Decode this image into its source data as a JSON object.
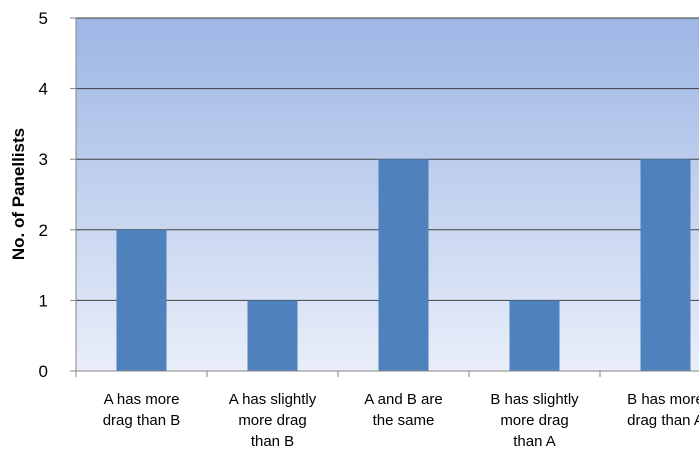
{
  "chart_data": {
    "type": "bar",
    "title": "",
    "xlabel": "",
    "ylabel": "No. of Panellists",
    "ylim": [
      0,
      5
    ],
    "yticks": [
      0,
      1,
      2,
      3,
      4,
      5
    ],
    "grid": true,
    "legend": "none",
    "categories": [
      [
        "A has more",
        "drag than B"
      ],
      [
        "A has slightly",
        "more drag",
        "than B"
      ],
      [
        "A and B are",
        "the same"
      ],
      [
        "B has slightly",
        "more drag",
        "than A"
      ],
      [
        "B has more",
        "drag than A"
      ]
    ],
    "values": [
      2,
      1,
      3,
      1,
      3
    ],
    "colors": {
      "bar": "#4f81bd",
      "plot_top": "#9db6e4",
      "plot_bottom": "#e9eef9",
      "axis": "#868686",
      "grid": "#3f3f3f"
    }
  }
}
